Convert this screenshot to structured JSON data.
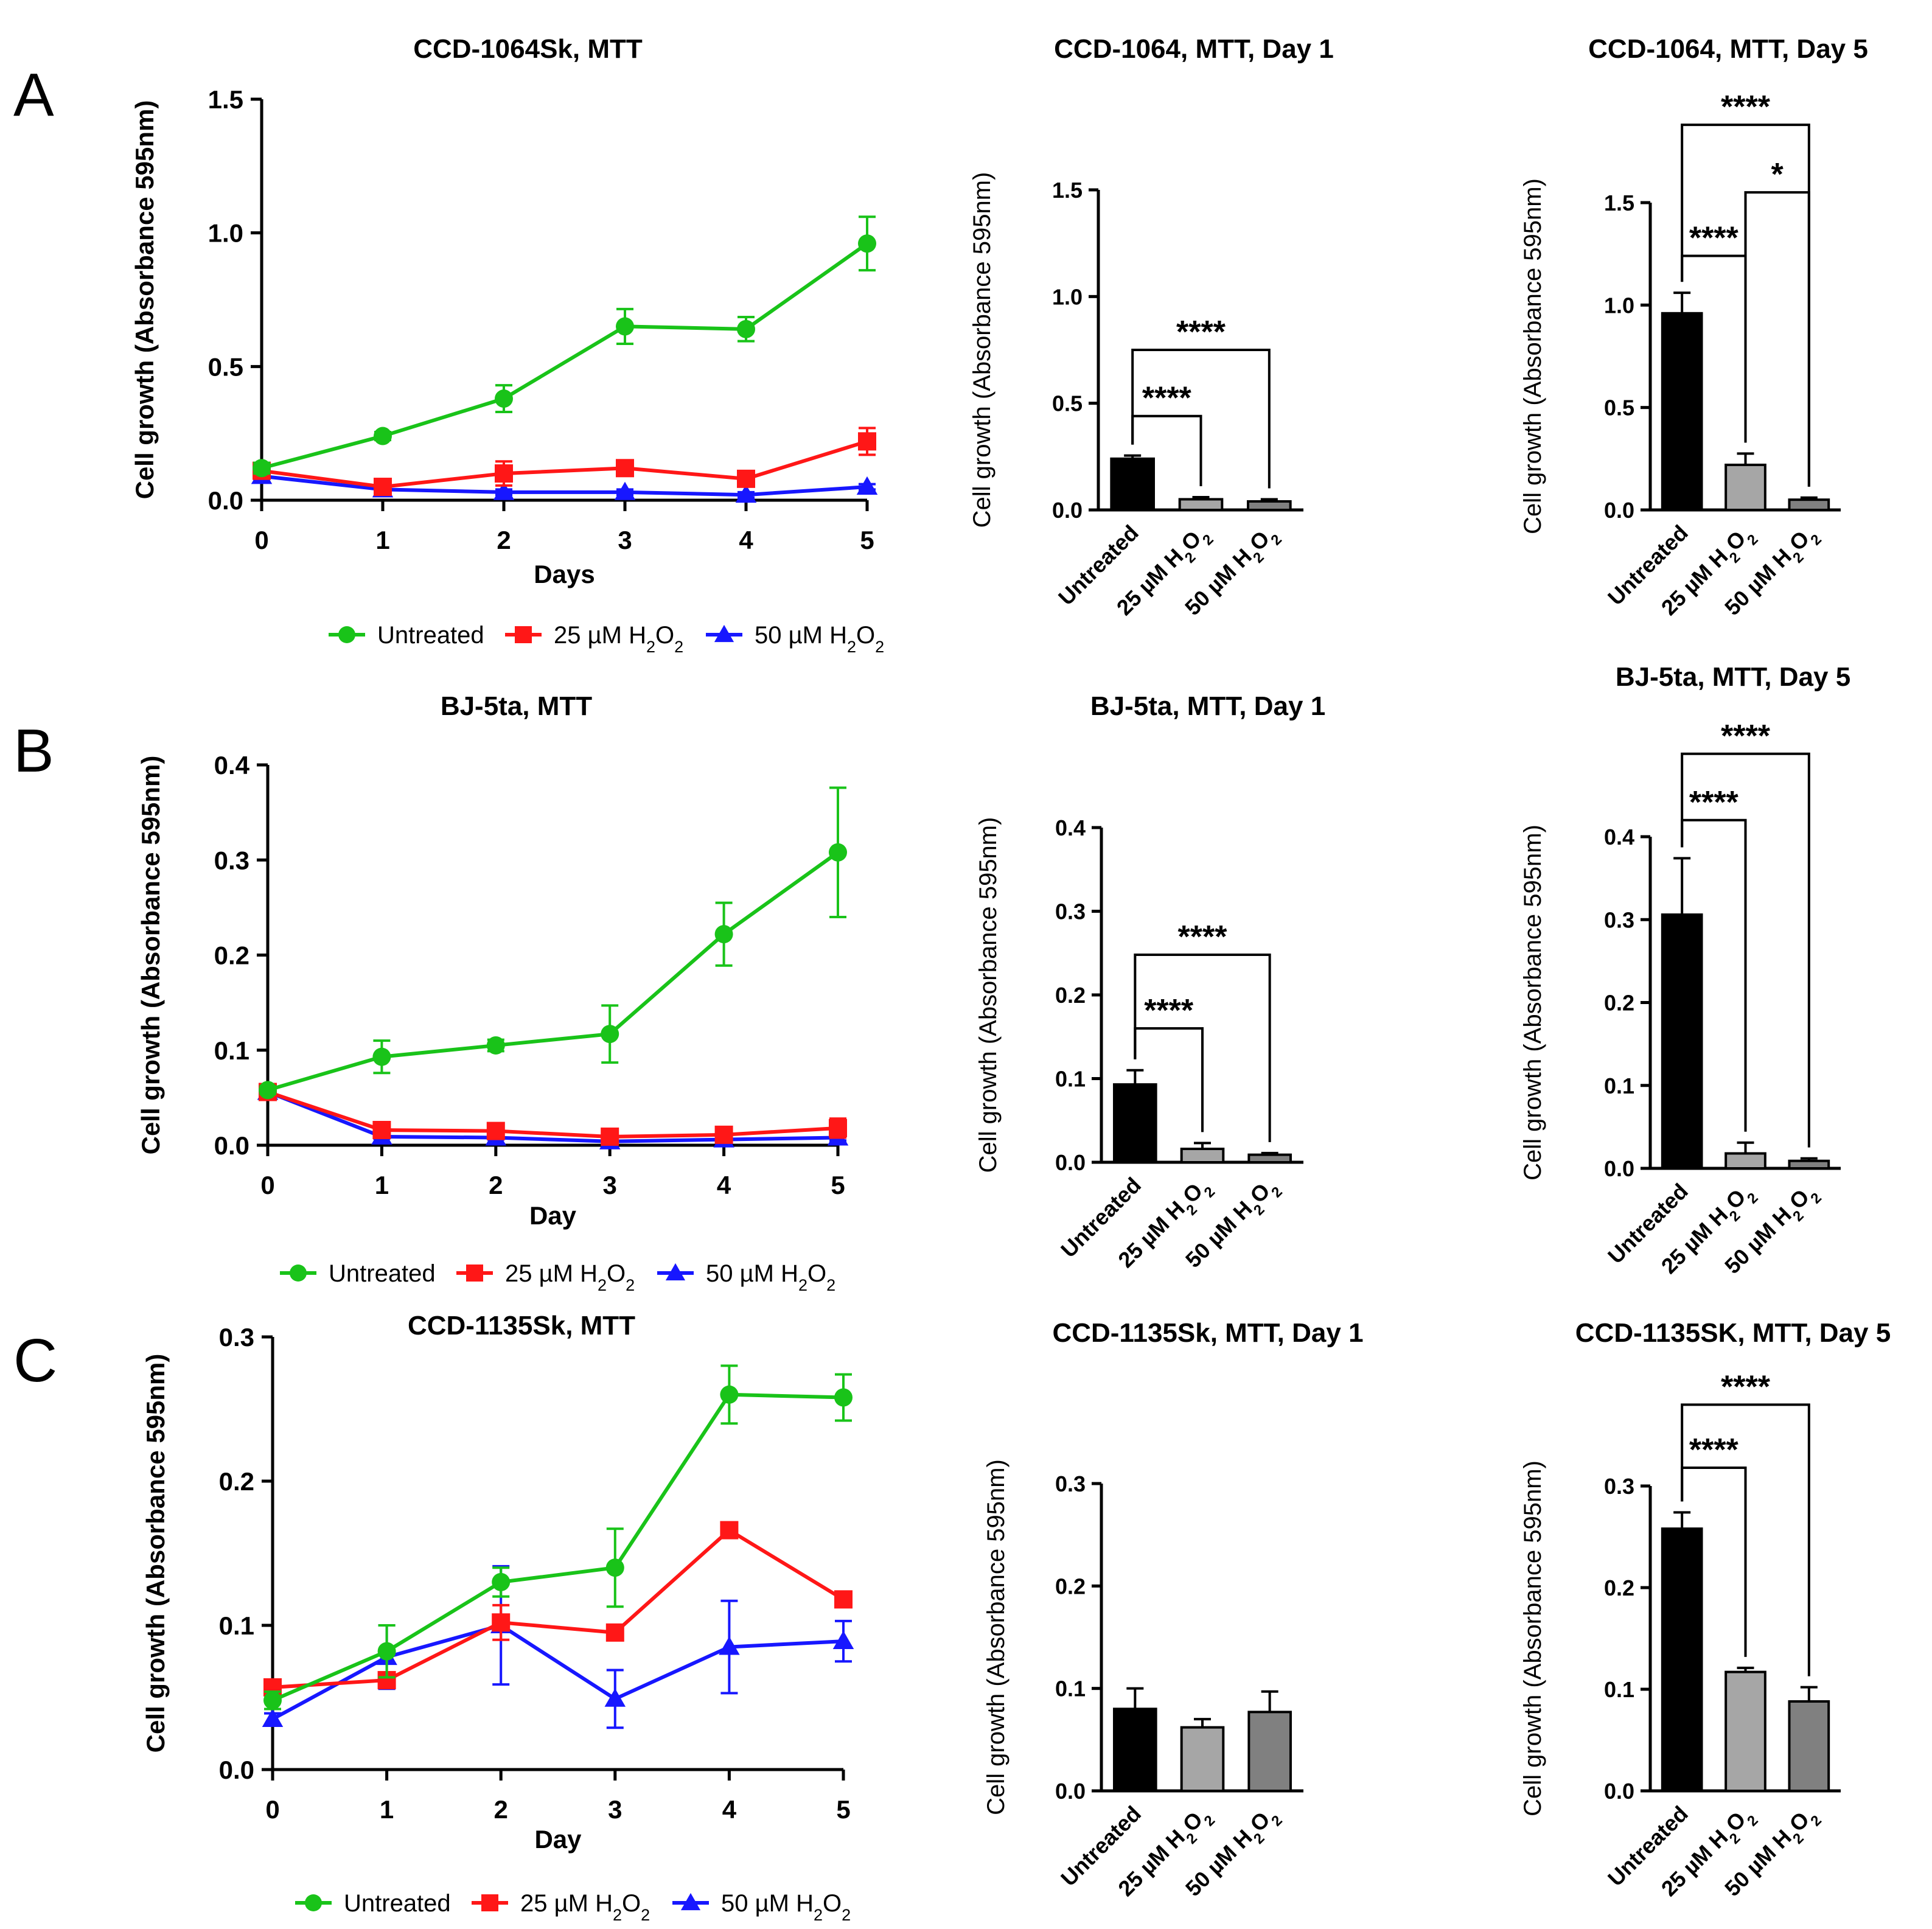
{
  "panel_labels": [
    "A",
    "B",
    "C"
  ],
  "legend": {
    "items": [
      {
        "label": "Untreated",
        "color": "#19c319",
        "marker": "circle"
      },
      {
        "label": "25 µM H₂O₂",
        "color": "#ff1717",
        "marker": "square"
      },
      {
        "label": "50 µM H₂O₂",
        "color": "#1717ff",
        "marker": "triangle"
      }
    ]
  },
  "colors": {
    "untreated": "#19c319",
    "h2o2_25": "#ff1717",
    "h2o2_50": "#1717ff",
    "bar_untreated": "#000000",
    "bar_25": "#a6a6a6",
    "bar_50": "#808080"
  },
  "chart_data": [
    {
      "type": "line",
      "panel": "A",
      "title": "CCD-1064Sk, MTT",
      "xlabel": "Days",
      "ylabel": "Cell growth (Absorbance 595nm)",
      "x": [
        0,
        1,
        2,
        3,
        4,
        5
      ],
      "xlim": [
        0,
        5
      ],
      "ylim": [
        0,
        1.5
      ],
      "yticks": [
        0.0,
        0.5,
        1.0,
        1.5
      ],
      "ytick_labels": [
        "0.0",
        "0.5",
        "1.0",
        "1.5"
      ],
      "series": [
        {
          "name": "Untreated",
          "values": [
            0.12,
            0.24,
            0.38,
            0.65,
            0.64,
            0.96
          ],
          "errors": [
            0.02,
            0.015,
            0.05,
            0.065,
            0.045,
            0.1
          ]
        },
        {
          "name": "25 µM H₂O₂",
          "values": [
            0.11,
            0.05,
            0.1,
            0.12,
            0.08,
            0.22
          ],
          "errors": [
            0.02,
            0.02,
            0.045,
            0.02,
            0.02,
            0.05
          ]
        },
        {
          "name": "50 µM H₂O₂",
          "values": [
            0.09,
            0.04,
            0.03,
            0.03,
            0.02,
            0.05
          ],
          "errors": [
            0.01,
            0.01,
            0.01,
            0.01,
            0.01,
            0.01
          ]
        }
      ]
    },
    {
      "type": "bar",
      "panel": "A",
      "title": "CCD-1064, MTT, Day 1",
      "ylabel": "Cell growth (Absorbance 595nm)",
      "categories": [
        "Untreated",
        "25 µM H₂O₂",
        "50 µM H₂O₂"
      ],
      "values": [
        0.24,
        0.05,
        0.04
      ],
      "errors": [
        0.015,
        0.01,
        0.01
      ],
      "ylim": [
        0,
        1.5
      ],
      "yticks": [
        0.0,
        0.5,
        1.0,
        1.5
      ],
      "ytick_labels": [
        "0.0",
        "0.5",
        "1.0",
        "1.5"
      ],
      "significance": [
        {
          "from": 0,
          "to": 2,
          "label": "****",
          "y": 0.75
        },
        {
          "from": 0,
          "to": 1,
          "label": "****",
          "y": 0.44
        }
      ]
    },
    {
      "type": "bar",
      "panel": "A",
      "title": "CCD-1064, MTT, Day 5",
      "ylabel": "Cell growth (Absorbance 595nm)",
      "categories": [
        "Untreated",
        "25 µM H₂O₂",
        "50 µM H₂O₂"
      ],
      "values": [
        0.96,
        0.22,
        0.05
      ],
      "errors": [
        0.1,
        0.055,
        0.01
      ],
      "ylim": [
        0,
        1.5
      ],
      "yticks": [
        0.0,
        0.5,
        1.0,
        1.5
      ],
      "ytick_labels": [
        "0.0",
        "0.5",
        "1.0",
        "1.5"
      ],
      "significance": [
        {
          "from": 0,
          "to": 2,
          "label": "****",
          "y": 1.88
        },
        {
          "from": 0,
          "to": 1,
          "label": "****",
          "y": 1.24
        },
        {
          "from": 1,
          "to": 2,
          "label": "*",
          "y": 1.55
        }
      ]
    },
    {
      "type": "line",
      "panel": "B",
      "title": "BJ-5ta, MTT",
      "xlabel": "Day",
      "ylabel": "Cell growth (Absorbance 595nm)",
      "x": [
        0,
        1,
        2,
        3,
        4,
        5
      ],
      "xlim": [
        0,
        5
      ],
      "ylim": [
        0,
        0.4
      ],
      "yticks": [
        0.0,
        0.1,
        0.2,
        0.3,
        0.4
      ],
      "ytick_labels": [
        "0.0",
        "0.1",
        "0.2",
        "0.3",
        "0.4"
      ],
      "series": [
        {
          "name": "Untreated",
          "values": [
            0.058,
            0.093,
            0.105,
            0.117,
            0.222,
            0.308
          ],
          "errors": [
            0.004,
            0.017,
            0.006,
            0.03,
            0.033,
            0.068
          ]
        },
        {
          "name": "25 µM H₂O₂",
          "values": [
            0.056,
            0.016,
            0.015,
            0.009,
            0.011,
            0.018
          ],
          "errors": [
            0.003,
            0.003,
            0.003,
            0.003,
            0.003,
            0.01
          ]
        },
        {
          "name": "50 µM H₂O₂",
          "values": [
            0.056,
            0.009,
            0.008,
            0.004,
            0.006,
            0.008
          ],
          "errors": [
            0.003,
            0.002,
            0.002,
            0.002,
            0.002,
            0.003
          ]
        }
      ]
    },
    {
      "type": "bar",
      "panel": "B",
      "title": "BJ-5ta, MTT, Day 1",
      "ylabel": "Cell growth (Absorbance 595nm)",
      "categories": [
        "Untreated",
        "25 µM H₂O₂",
        "50 µM H₂O₂"
      ],
      "values": [
        0.093,
        0.016,
        0.009
      ],
      "errors": [
        0.017,
        0.007,
        0.002
      ],
      "ylim": [
        0,
        0.4
      ],
      "yticks": [
        0.0,
        0.1,
        0.2,
        0.3,
        0.4
      ],
      "ytick_labels": [
        "0.0",
        "0.1",
        "0.2",
        "0.3",
        "0.4"
      ],
      "significance": [
        {
          "from": 0,
          "to": 2,
          "label": "****",
          "y": 0.248
        },
        {
          "from": 0,
          "to": 1,
          "label": "****",
          "y": 0.16
        }
      ]
    },
    {
      "type": "bar",
      "panel": "B",
      "title": "BJ-5ta, MTT, Day 5",
      "ylabel": "Cell growth (Absorbance 595nm)",
      "categories": [
        "Untreated",
        "25 µM H₂O₂",
        "50 µM H₂O₂"
      ],
      "values": [
        0.306,
        0.018,
        0.009
      ],
      "errors": [
        0.068,
        0.013,
        0.003
      ],
      "ylim": [
        0,
        0.4
      ],
      "yticks": [
        0.0,
        0.1,
        0.2,
        0.3,
        0.4
      ],
      "ytick_labels": [
        "0.0",
        "0.1",
        "0.2",
        "0.3",
        "0.4"
      ],
      "significance": [
        {
          "from": 0,
          "to": 2,
          "label": "****",
          "y": 0.5
        },
        {
          "from": 0,
          "to": 1,
          "label": "****",
          "y": 0.42
        }
      ]
    },
    {
      "type": "line",
      "panel": "C",
      "title": "CCD-1135Sk, MTT",
      "xlabel": "Day",
      "ylabel": "Cell growth (Absorbance 595nm)",
      "x": [
        0,
        1,
        2,
        3,
        4,
        5
      ],
      "xlim": [
        0,
        5
      ],
      "ylim": [
        0,
        0.3
      ],
      "yticks": [
        0.0,
        0.1,
        0.2,
        0.3
      ],
      "ytick_labels": [
        "0.0",
        "0.1",
        "0.2",
        "0.3"
      ],
      "series": [
        {
          "name": "Untreated",
          "values": [
            0.048,
            0.082,
            0.13,
            0.14,
            0.26,
            0.258
          ],
          "errors": [
            0.006,
            0.018,
            0.01,
            0.027,
            0.02,
            0.016
          ]
        },
        {
          "name": "25 µM H₂O₂",
          "values": [
            0.057,
            0.062,
            0.102,
            0.095,
            0.166,
            0.118
          ],
          "errors": [
            0.005,
            0.004,
            0.012,
            0.003,
            0.003,
            0.003
          ]
        },
        {
          "name": "50 µM H₂O₂",
          "values": [
            0.035,
            0.078,
            0.1,
            0.049,
            0.085,
            0.089
          ],
          "errors": [
            0.004,
            0.022,
            0.041,
            0.02,
            0.032,
            0.014
          ]
        }
      ]
    },
    {
      "type": "bar",
      "panel": "C",
      "title": "CCD-1135Sk, MTT, Day 1",
      "ylabel": "Cell growth (Absorbance 595nm)",
      "categories": [
        "Untreated",
        "25 µM H₂O₂",
        "50 µM H₂O₂"
      ],
      "values": [
        0.08,
        0.062,
        0.077
      ],
      "errors": [
        0.02,
        0.008,
        0.02
      ],
      "ylim": [
        0,
        0.3
      ],
      "yticks": [
        0.0,
        0.1,
        0.2,
        0.3
      ],
      "ytick_labels": [
        "0.0",
        "0.1",
        "0.2",
        "0.3"
      ],
      "significance": []
    },
    {
      "type": "bar",
      "panel": "C",
      "title": "CCD-1135SK, MTT, Day 5",
      "ylabel": "Cell growth (Absorbance 595nm)",
      "categories": [
        "Untreated",
        "25 µM H₂O₂",
        "50 µM H₂O₂"
      ],
      "values": [
        0.258,
        0.117,
        0.088
      ],
      "errors": [
        0.016,
        0.004,
        0.014
      ],
      "ylim": [
        0,
        0.3
      ],
      "yticks": [
        0.0,
        0.1,
        0.2,
        0.3
      ],
      "ytick_labels": [
        "0.0",
        "0.1",
        "0.2",
        "0.3"
      ],
      "significance": [
        {
          "from": 0,
          "to": 2,
          "label": "****",
          "y": 0.38
        },
        {
          "from": 0,
          "to": 1,
          "label": "****",
          "y": 0.318
        }
      ]
    }
  ]
}
